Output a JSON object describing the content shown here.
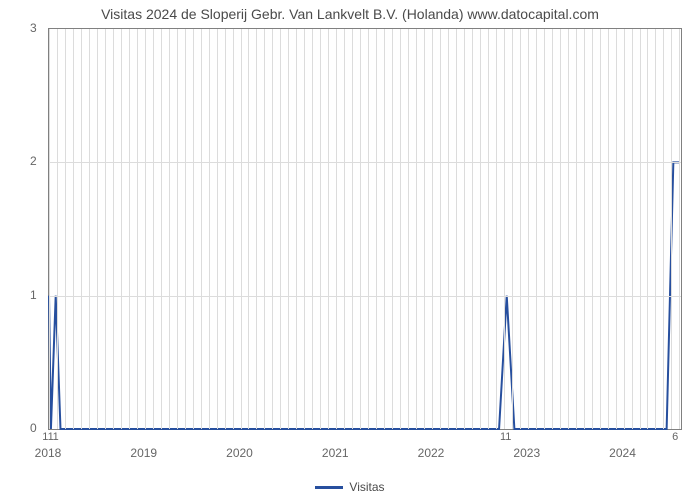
{
  "chart": {
    "type": "line",
    "title": "Visitas 2024 de Sloperij Gebr. Van Lankvelt B.V. (Holanda) www.datocapital.com",
    "title_fontsize": 14,
    "title_color": "#4a4a4a",
    "background_color": "#ffffff",
    "grid_color": "#dcdcdc",
    "axis_color": "#808080",
    "tick_color": "#666666",
    "ylim": [
      0,
      3
    ],
    "y_ticks": [
      0,
      1,
      2,
      3
    ],
    "x_years": [
      2018,
      2019,
      2020,
      2021,
      2022,
      2023,
      2024
    ],
    "x_minor_per_year": 12,
    "series": {
      "name": "Visitas",
      "color": "#274f9e",
      "stroke_width": 2,
      "data": [
        {
          "x": 2018.0,
          "y": 1
        },
        {
          "x": 2018.02,
          "y": 0
        },
        {
          "x": 2018.07,
          "y": 1
        },
        {
          "x": 2018.12,
          "y": 0
        },
        {
          "x": 2022.7,
          "y": 0
        },
        {
          "x": 2022.78,
          "y": 1
        },
        {
          "x": 2022.86,
          "y": 0
        },
        {
          "x": 2024.45,
          "y": 0
        },
        {
          "x": 2024.52,
          "y": 2
        },
        {
          "x": 2024.58,
          "y": 2
        }
      ],
      "point_labels": [
        {
          "x": 2018.0,
          "text": "11"
        },
        {
          "x": 2018.08,
          "text": "1"
        },
        {
          "x": 2022.78,
          "text": "11"
        },
        {
          "x": 2024.55,
          "text": "6"
        }
      ]
    },
    "legend": {
      "label": "Visitas",
      "line_color": "#274f9e"
    }
  }
}
